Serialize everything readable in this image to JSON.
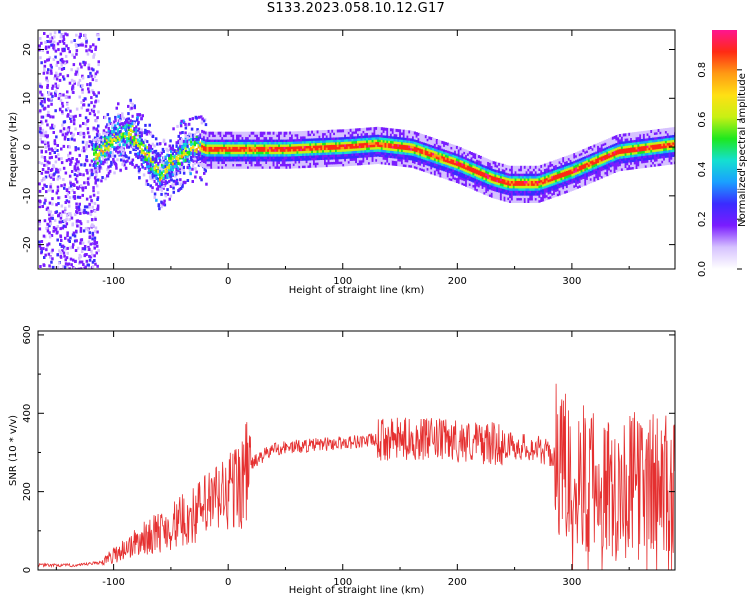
{
  "title": "S133.2023.058.10.12.G17",
  "colors": {
    "snr_line": "#e53030",
    "colormap": [
      "#ffffff",
      "#d6c2ff",
      "#7a1cff",
      "#3a2cff",
      "#1aa0ff",
      "#14e0d0",
      "#1ee81e",
      "#c8f014",
      "#ffe014",
      "#ff9a14",
      "#ff2a14",
      "#ff1490"
    ]
  },
  "chart_data": [
    {
      "type": "heatmap",
      "title": "S133.2023.058.10.12.G17",
      "xlabel": "Height of straight line (km)",
      "ylabel": "Frequency (Hz)",
      "xlim": [
        -166,
        390
      ],
      "ylim": [
        -25,
        24
      ],
      "x_ticks": [
        "-100",
        "0",
        "100",
        "200",
        "300"
      ],
      "y_ticks": [
        "20",
        "10",
        "0",
        "-10",
        "-20"
      ],
      "grid": false,
      "colorbar": {
        "label": "Normalized spectral amplitude",
        "range": [
          0.0,
          0.96
        ],
        "ticks": [
          "0.0",
          "0.2",
          "0.4",
          "0.6",
          "0.8"
        ]
      },
      "ridge": {
        "x": [
          -115,
          -100,
          -85,
          -70,
          -60,
          -50,
          -40,
          -30,
          -20,
          0,
          50,
          100,
          130,
          160,
          200,
          230,
          245,
          270,
          300,
          340,
          390
        ],
        "y": [
          -1.5,
          2,
          3,
          -2,
          -6,
          -3,
          -1,
          0.5,
          -0.5,
          -0.5,
          -0.5,
          0,
          0.5,
          -0.3,
          -3.5,
          -6.5,
          -7.5,
          -7.5,
          -5,
          -1,
          0.5
        ]
      }
    },
    {
      "type": "line",
      "xlabel": "Height of straight line (km)",
      "ylabel": "SNR (10 * v/v)",
      "xlim": [
        -166,
        390
      ],
      "ylim": [
        0,
        610
      ],
      "x_ticks": [
        "-100",
        "0",
        "100",
        "200",
        "300"
      ],
      "y_ticks": [
        "0",
        "200",
        "400",
        "600"
      ],
      "grid": false,
      "envelope": {
        "x": [
          -166,
          -130,
          -110,
          -90,
          -70,
          -50,
          -30,
          -10,
          10,
          20,
          40,
          80,
          120,
          160,
          200,
          240,
          270,
          285,
          300,
          320,
          340,
          360,
          390
        ],
        "y": [
          12,
          12,
          20,
          55,
          85,
          110,
          140,
          180,
          220,
          270,
          310,
          320,
          330,
          335,
          330,
          320,
          310,
          290,
          250,
          220,
          210,
          215,
          220
        ]
      }
    }
  ]
}
